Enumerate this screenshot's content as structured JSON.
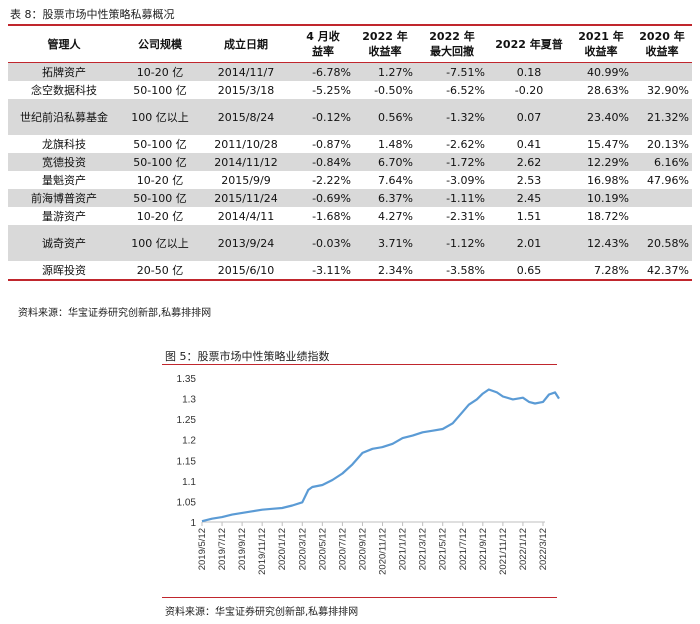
{
  "table_caption": "表 8：股票市场中性策略私募概况",
  "table": {
    "headers": [
      [
        "管理人"
      ],
      [
        "公司规模"
      ],
      [
        "成立日期"
      ],
      [
        "4 月收",
        "益率"
      ],
      [
        "2022 年",
        "收益率"
      ],
      [
        "2022 年",
        "最大回撤"
      ],
      [
        "2022 年夏普"
      ],
      [
        "2021 年",
        "收益率"
      ],
      [
        "2020 年",
        "收益率"
      ]
    ],
    "rows": [
      {
        "cells": [
          "拓牌资产",
          "10-20 亿",
          "2014/11/7",
          "-6.78%",
          "1.27%",
          "-7.51%",
          "0.18",
          "40.99%",
          ""
        ],
        "shade": true,
        "tall": false
      },
      {
        "cells": [
          "念空数据科技",
          "50-100 亿",
          "2015/3/18",
          "-5.25%",
          "-0.50%",
          "-6.52%",
          "-0.20",
          "28.63%",
          "32.90%"
        ],
        "shade": false,
        "tall": false
      },
      {
        "cells": [
          "世纪前沿私募基金",
          "100 亿以上",
          "2015/8/24",
          "-0.12%",
          "0.56%",
          "-1.32%",
          "0.07",
          "23.40%",
          "21.32%"
        ],
        "shade": true,
        "tall": true
      },
      {
        "cells": [
          "龙旗科技",
          "50-100 亿",
          "2011/10/28",
          "-0.87%",
          "1.48%",
          "-2.62%",
          "0.41",
          "15.47%",
          "20.13%"
        ],
        "shade": false,
        "tall": false
      },
      {
        "cells": [
          "宽德投资",
          "50-100 亿",
          "2014/11/12",
          "-0.84%",
          "6.70%",
          "-1.72%",
          "2.62",
          "12.29%",
          "6.16%"
        ],
        "shade": true,
        "tall": false
      },
      {
        "cells": [
          "量魁资产",
          "10-20 亿",
          "2015/9/9",
          "-2.22%",
          "7.64%",
          "-3.09%",
          "2.53",
          "16.98%",
          "47.96%"
        ],
        "shade": false,
        "tall": false
      },
      {
        "cells": [
          "前海博普资产",
          "50-100 亿",
          "2015/11/24",
          "-0.69%",
          "6.37%",
          "-1.11%",
          "2.45",
          "10.19%",
          ""
        ],
        "shade": true,
        "tall": false
      },
      {
        "cells": [
          "量游资产",
          "10-20 亿",
          "2014/4/11",
          "-1.68%",
          "4.27%",
          "-2.31%",
          "1.51",
          "18.72%",
          ""
        ],
        "shade": false,
        "tall": false
      },
      {
        "cells": [
          "诚奇资产",
          "100 亿以上",
          "2013/9/24",
          "-0.03%",
          "3.71%",
          "-1.12%",
          "2.01",
          "12.43%",
          "20.58%"
        ],
        "shade": true,
        "tall": true
      },
      {
        "cells": [
          "源晖投资",
          "20-50 亿",
          "2015/6/10",
          "-3.11%",
          "2.34%",
          "-3.58%",
          "0.65",
          "7.28%",
          "42.37%"
        ],
        "shade": false,
        "tall": false
      }
    ]
  },
  "source_1": "资料来源：华宝证券研究创新部,私募排排网",
  "figure_caption": "图 5：股票市场中性策略业绩指数",
  "source_2": "资料来源：华宝证券研究创新部,私募排排网",
  "chart_data": {
    "type": "line",
    "color": "#5b9bd5",
    "ylim": [
      1,
      1.35
    ],
    "yticks": [
      "1",
      "1.05",
      "1.1",
      "1.15",
      "1.2",
      "1.25",
      "1.3",
      "1.35"
    ],
    "categories": [
      "2019/5/12",
      "2019/7/12",
      "2019/9/12",
      "2019/11/12",
      "2020/1/12",
      "2020/3/12",
      "2020/5/12",
      "2020/7/12",
      "2020/9/12",
      "2020/11/12",
      "2021/1/12",
      "2021/3/12",
      "2021/5/12",
      "2021/7/12",
      "2021/9/12",
      "2021/11/12",
      "2022/1/12",
      "2022/3/12"
    ],
    "x": [
      0,
      0.5,
      1,
      1.5,
      2,
      2.5,
      3,
      3.5,
      4,
      4.5,
      5,
      5.3,
      5.5,
      6,
      6.5,
      7,
      7.5,
      8,
      8.5,
      9,
      9.5,
      10,
      10.5,
      11,
      11.5,
      12,
      12.5,
      13,
      13.3,
      13.7,
      14,
      14.3,
      14.7,
      15,
      15.5,
      16,
      16.3,
      16.6,
      17,
      17.3,
      17.6,
      17.8
    ],
    "values": [
      1.002,
      1.008,
      1.012,
      1.018,
      1.022,
      1.026,
      1.03,
      1.032,
      1.034,
      1.04,
      1.048,
      1.078,
      1.085,
      1.09,
      1.102,
      1.118,
      1.14,
      1.168,
      1.178,
      1.182,
      1.19,
      1.204,
      1.21,
      1.218,
      1.222,
      1.226,
      1.24,
      1.268,
      1.285,
      1.298,
      1.312,
      1.322,
      1.315,
      1.305,
      1.298,
      1.302,
      1.292,
      1.288,
      1.292,
      1.31,
      1.315,
      1.3
    ]
  }
}
